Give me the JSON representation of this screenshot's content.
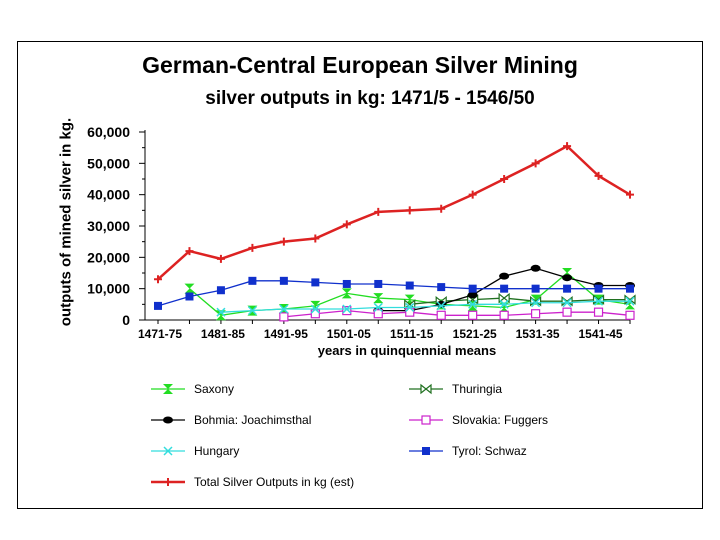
{
  "chart_data": {
    "type": "line",
    "title": "German-Central European Silver Mining",
    "subtitle": "silver outputs in kg: 1471/5 - 1546/50",
    "xlabel": "years in quinquennial means",
    "ylabel": "outputs of mined silver in kg.",
    "ylim": [
      0,
      60000
    ],
    "y_ticks": [
      "0",
      "10,000",
      "20,000",
      "30,000",
      "40,000",
      "50,000",
      "60,000"
    ],
    "x_tick_labels": [
      "1471-75",
      "1481-85",
      "1491-95",
      "1501-05",
      "1511-15",
      "1521-25",
      "1531-35",
      "1541-45"
    ],
    "categories": [
      "1471-75",
      "1476-80",
      "1481-85",
      "1486-90",
      "1491-95",
      "1496-00",
      "1501-05",
      "1506-10",
      "1511-15",
      "1516-20",
      "1521-25",
      "1526-30",
      "1531-35",
      "1536-40",
      "1541-45",
      "1546-50"
    ],
    "series": [
      {
        "name": "Saxony",
        "color": "#22dd22",
        "marker": "hourglass",
        "values": [
          null,
          10000,
          1500,
          3000,
          3500,
          4500,
          8500,
          7000,
          6500,
          5000,
          4500,
          4000,
          6500,
          15000,
          6500,
          5000
        ]
      },
      {
        "name": "Thuringia",
        "color": "#207020",
        "marker": "bowtie",
        "values": [
          null,
          null,
          null,
          null,
          null,
          null,
          null,
          null,
          5000,
          6000,
          6500,
          7000,
          6000,
          6000,
          6500,
          6500
        ]
      },
      {
        "name": "Bohmia: Joachimsthal",
        "color": "#000000",
        "marker": "circle",
        "values": [
          null,
          null,
          null,
          null,
          null,
          null,
          null,
          3000,
          3000,
          5000,
          8000,
          14000,
          16500,
          13500,
          11000,
          11000
        ]
      },
      {
        "name": "Slovakia: Fuggers",
        "color": "#cc22cc",
        "marker": "square-open",
        "values": [
          null,
          null,
          null,
          null,
          1000,
          2000,
          3000,
          2000,
          2500,
          1500,
          1500,
          1500,
          2000,
          2500,
          2500,
          1500
        ]
      },
      {
        "name": "Hungary",
        "color": "#33dddd",
        "marker": "x",
        "values": [
          null,
          null,
          2500,
          3000,
          3500,
          3500,
          3500,
          4000,
          4000,
          4500,
          5000,
          5000,
          5500,
          5500,
          6000,
          6000
        ]
      },
      {
        "name": "Tyrol: Schwaz",
        "color": "#1030cc",
        "marker": "square",
        "values": [
          4500,
          7500,
          9500,
          12500,
          12500,
          12000,
          11500,
          11500,
          11000,
          10500,
          10000,
          10000,
          10000,
          10000,
          10000,
          10000
        ]
      },
      {
        "name": "Total Silver Outputs in kg (est)",
        "color": "#dd2222",
        "marker": "plus",
        "values": [
          13000,
          22000,
          19500,
          23000,
          25000,
          26000,
          30500,
          34500,
          35000,
          35500,
          40000,
          45000,
          50000,
          55500,
          46000,
          40000
        ]
      }
    ]
  }
}
